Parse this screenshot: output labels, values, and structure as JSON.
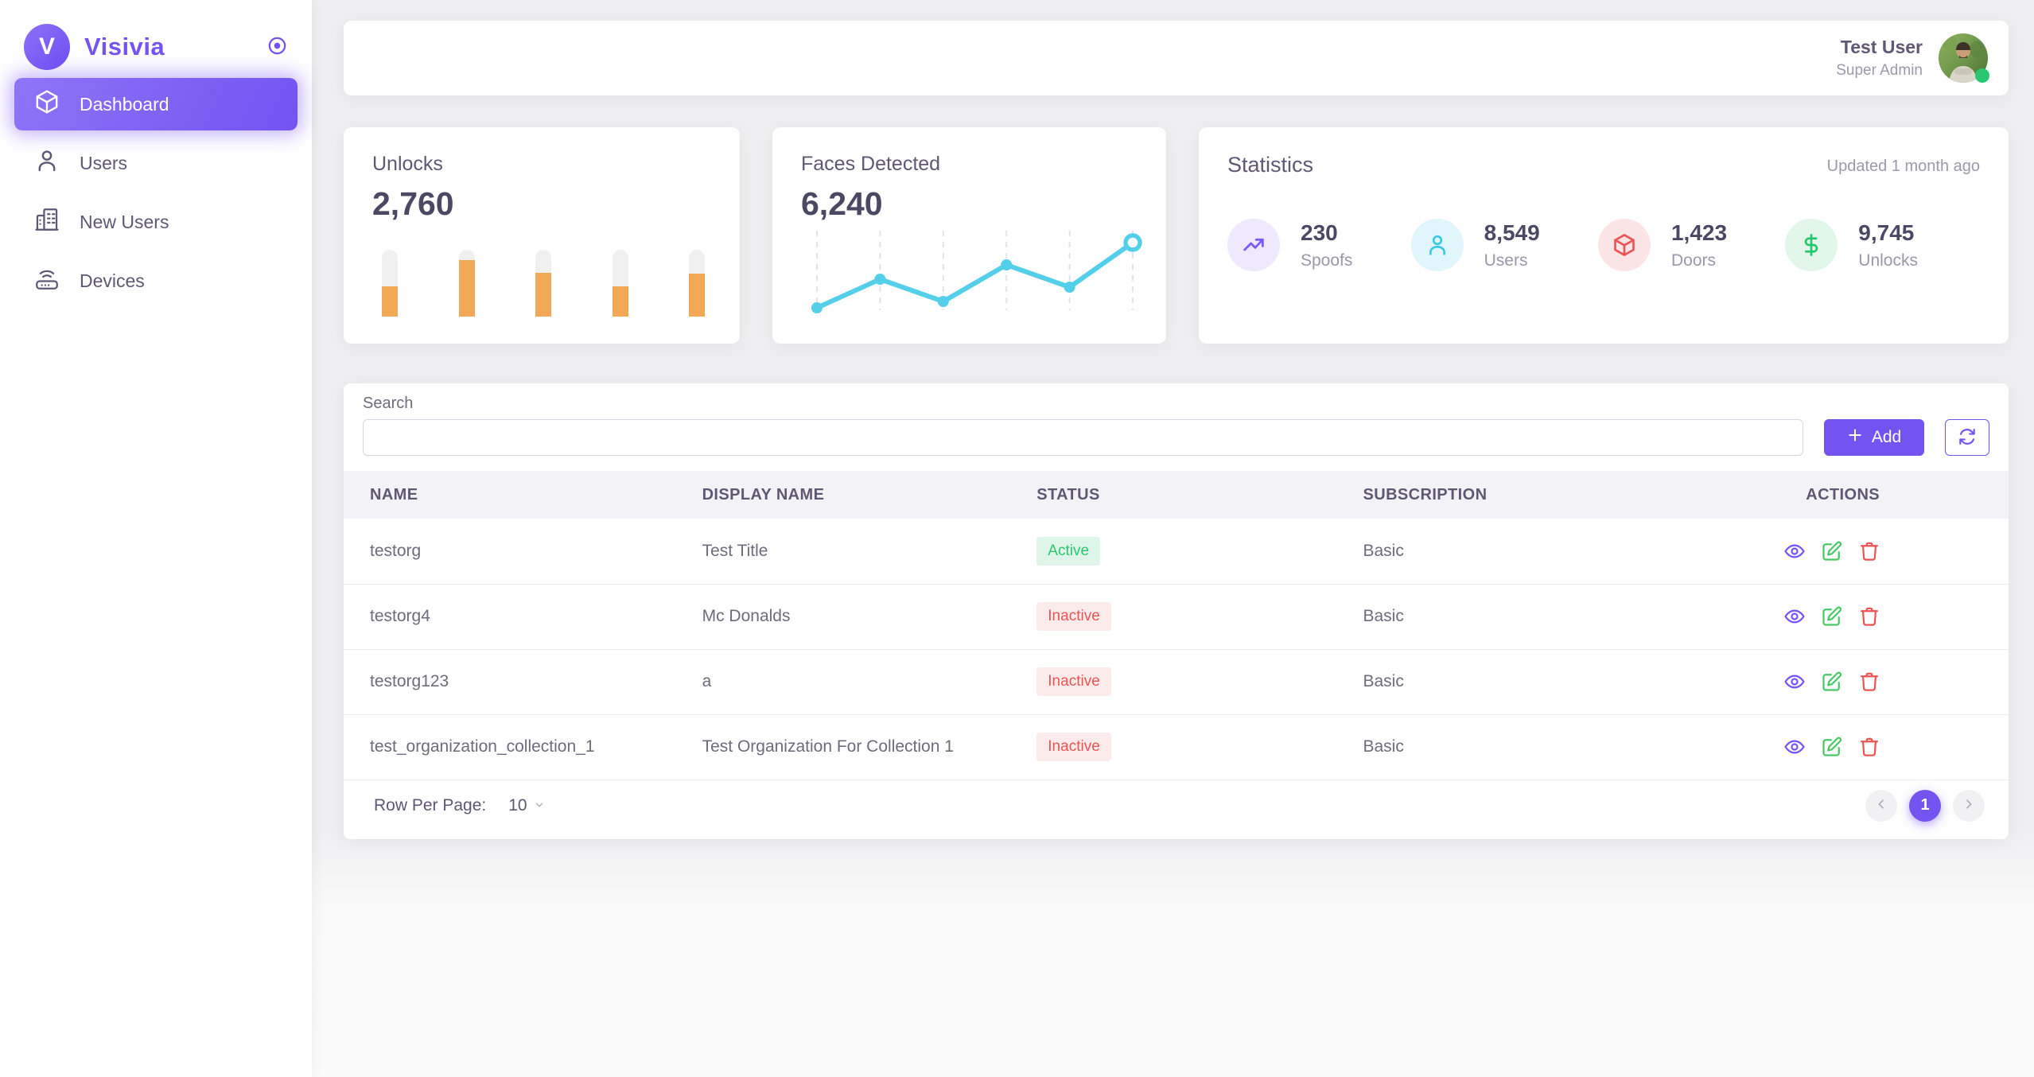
{
  "sidebar": {
    "logo_initial": "V",
    "brand": "Visivia",
    "items": [
      {
        "label": "Dashboard",
        "active": true
      },
      {
        "label": "Users",
        "active": false
      },
      {
        "label": "New Users",
        "active": false
      },
      {
        "label": "Devices",
        "active": false
      }
    ]
  },
  "topbar": {
    "user_name": "Test User",
    "user_role": "Super Admin",
    "online": true
  },
  "cards": {
    "unlocks": {
      "title": "Unlocks",
      "value": "2,760",
      "chart_data": {
        "type": "bar",
        "values_percent": [
          45,
          84,
          65,
          45,
          64
        ],
        "bar_color": "#f2a855",
        "track_color": "#f0f0f0"
      }
    },
    "faces_detected": {
      "title": "Faces Detected",
      "value": "6,240",
      "chart_data": {
        "type": "line",
        "values_percent": [
          7,
          43,
          15,
          61,
          33,
          89
        ],
        "line_color": "#53cfe9",
        "grid": "dashed-vertical",
        "last_point_highlighted": true
      }
    },
    "statistics": {
      "title": "Statistics",
      "updated": "Updated 1 month ago",
      "stats": [
        {
          "value": "230",
          "label": "Spoofs",
          "icon": "trend-up-icon",
          "color": "#7a5af8"
        },
        {
          "value": "8,549",
          "label": "Users",
          "icon": "user-icon",
          "color": "#38c8e8"
        },
        {
          "value": "1,423",
          "label": "Doors",
          "icon": "cube-icon",
          "color": "#ea5455"
        },
        {
          "value": "9,745",
          "label": "Unlocks",
          "icon": "dollar-icon",
          "color": "#28c76f"
        }
      ]
    }
  },
  "organizations": {
    "search_label": "Search",
    "search_value": "",
    "add_button_label": "Add",
    "columns": [
      "NAME",
      "DISPLAY NAME",
      "STATUS",
      "SUBSCRIPTION",
      "ACTIONS"
    ],
    "rows": [
      {
        "name": "testorg",
        "display_name": "Test Title",
        "status": "Active",
        "subscription": "Basic"
      },
      {
        "name": "testorg4",
        "display_name": "Mc Donalds",
        "status": "Inactive",
        "subscription": "Basic"
      },
      {
        "name": "testorg123",
        "display_name": "a",
        "status": "Inactive",
        "subscription": "Basic"
      },
      {
        "name": "test_organization_collection_1",
        "display_name": "Test Organization For Collection 1",
        "status": "Inactive",
        "subscription": "Basic"
      }
    ],
    "row_actions": [
      "view",
      "edit",
      "delete"
    ],
    "footer": {
      "rows_per_page_label": "Row Per Page:",
      "rows_per_page_value": "10",
      "current_page": "1"
    }
  },
  "colors": {
    "accent_purple": "#7453f1",
    "bar_orange": "#f2a855",
    "line_cyan": "#53cfe9",
    "success_green": "#28c76f",
    "danger_red": "#ea5455",
    "table_header_bg": "#f3f2f7",
    "content_bg": "#efeff1"
  }
}
